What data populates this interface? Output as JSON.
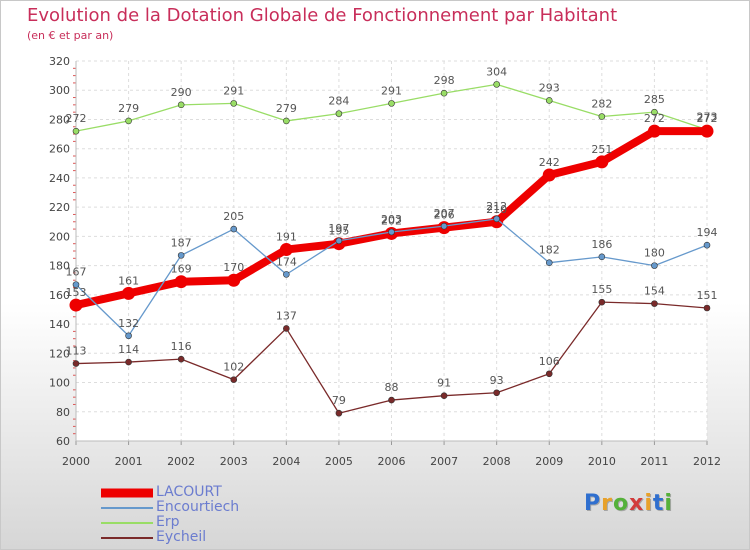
{
  "header": {
    "title": "Evolution de la Dotation Globale de Fonctionnement par Habitant",
    "subtitle": "(en € et par an)"
  },
  "logo": {
    "text": "Proxiti",
    "colors": [
      "#2f6fcf",
      "#e8a12a",
      "#55b13a",
      "#d23b3b",
      "#e8a12a",
      "#2f6fcf",
      "#55b13a"
    ]
  },
  "chart_data": {
    "type": "line",
    "title": "Evolution de la Dotation Globale de Fonctionnement par Habitant",
    "subtitle": "(en € et par an)",
    "xlabel": "",
    "ylabel": "",
    "x": [
      "2000",
      "2001",
      "2002",
      "2003",
      "2004",
      "2005",
      "2006",
      "2007",
      "2008",
      "2009",
      "2010",
      "2011",
      "2012"
    ],
    "ylim": [
      60,
      320
    ],
    "yticks": [
      60,
      80,
      100,
      120,
      140,
      160,
      180,
      200,
      220,
      240,
      260,
      280,
      300,
      320
    ],
    "grid": true,
    "legend_position": "bottom-left",
    "series": [
      {
        "name": "LACOURT",
        "color": "#ee0000",
        "values": [
          153,
          161,
          169,
          170,
          191,
          195,
          202,
          206,
          210,
          242,
          251,
          272,
          272
        ]
      },
      {
        "name": "Encourtiech",
        "color": "#6699cc",
        "values": [
          167,
          132,
          187,
          205,
          174,
          197,
          203,
          207,
          212,
          182,
          186,
          180,
          194
        ]
      },
      {
        "name": "Erp",
        "color": "#99dd66",
        "values": [
          272,
          279,
          290,
          291,
          279,
          284,
          291,
          298,
          304,
          293,
          282,
          285,
          273
        ]
      },
      {
        "name": "Eycheil",
        "color": "#7a2a2a",
        "values": [
          113,
          114,
          116,
          102,
          137,
          79,
          88,
          91,
          93,
          106,
          155,
          154,
          151
        ]
      }
    ]
  }
}
